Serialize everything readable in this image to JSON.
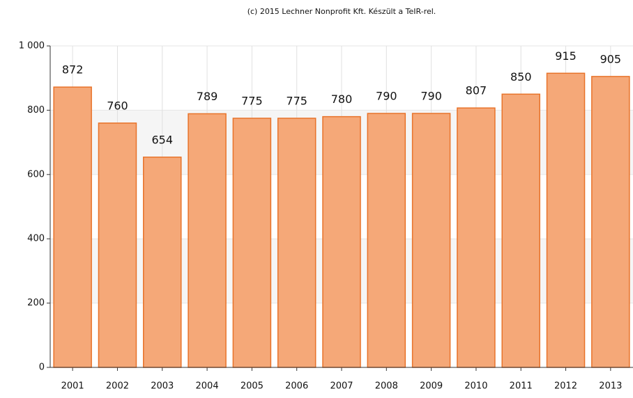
{
  "chart_data": {
    "type": "bar",
    "title": "(c) 2015 Lechner Nonprofit Kft. Készült a TeIR-rel.",
    "categories": [
      "2001",
      "2002",
      "2003",
      "2004",
      "2005",
      "2006",
      "2007",
      "2008",
      "2009",
      "2010",
      "2011",
      "2012",
      "2013"
    ],
    "values": [
      872,
      760,
      654,
      789,
      775,
      775,
      780,
      790,
      790,
      807,
      850,
      915,
      905
    ],
    "color": "#f5a878",
    "edge_color": "#e8732a",
    "ylim": [
      0,
      1000
    ],
    "yticks": [
      0,
      200,
      400,
      600,
      800,
      {
        "value": 1000,
        "label": "1 000"
      }
    ],
    "grid": true
  }
}
